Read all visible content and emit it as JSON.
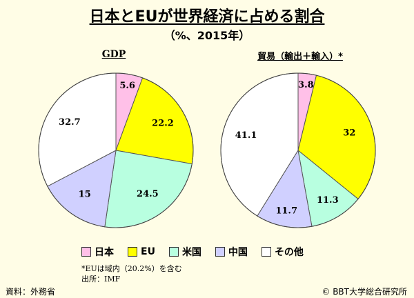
{
  "title": "日本とEUが世界経済に占める割合",
  "subtitle": "（%、2015年）",
  "colors": {
    "japan": "#ffc0e8",
    "eu": "#ffff00",
    "us": "#b8ffe0",
    "china": "#d0d0ff",
    "other": "#ffffff"
  },
  "legend": [
    {
      "label": "日本",
      "color_key": "japan"
    },
    {
      "label": "EU",
      "color_key": "eu"
    },
    {
      "label": "米国",
      "color_key": "us"
    },
    {
      "label": "中国",
      "color_key": "china"
    },
    {
      "label": "その他",
      "color_key": "other"
    }
  ],
  "notes": {
    "eu_note": "*EUは域内（20.2%）を含む",
    "source_imf": "出所：IMF"
  },
  "footer": {
    "source": "資料：外務省",
    "copyright": "© BBT大学総合研究所"
  },
  "chart_data": [
    {
      "type": "pie",
      "title": "GDP",
      "categories": [
        "日本",
        "EU",
        "米国",
        "中国",
        "その他"
      ],
      "values": [
        5.6,
        22.2,
        24.5,
        15,
        32.7
      ],
      "value_labels": [
        "5.6",
        "22.2",
        "24.5",
        "15",
        "32.7"
      ]
    },
    {
      "type": "pie",
      "title": "貿易（輸出＋輸入）*",
      "categories": [
        "日本",
        "EU",
        "米国",
        "中国",
        "その他"
      ],
      "values": [
        3.8,
        32,
        11.3,
        11.7,
        41.1
      ],
      "value_labels": [
        "3.8",
        "32",
        "11.3",
        "11.7",
        "41.1"
      ]
    }
  ]
}
